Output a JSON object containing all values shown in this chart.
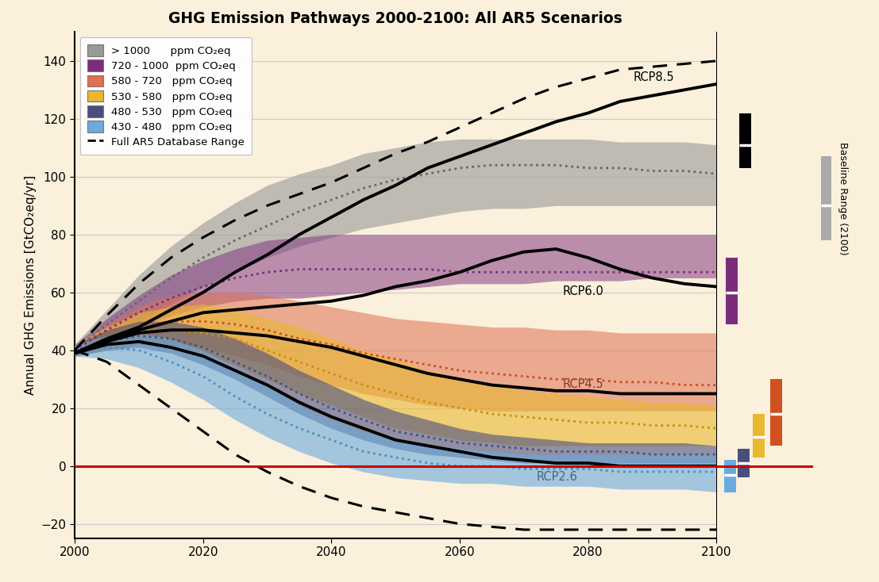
{
  "title": "GHG Emission Pathways 2000-2100: All AR5 Scenarios",
  "ylabel": "Annual GHG Emissions [GtCO₂eq/yr]",
  "bg_color": "#faf0dc",
  "xlim": [
    2000,
    2100
  ],
  "ylim": [
    -25,
    150
  ],
  "yticks": [
    -20,
    0,
    20,
    40,
    60,
    80,
    100,
    120,
    140
  ],
  "xticks": [
    2000,
    2020,
    2040,
    2060,
    2080,
    2100
  ],
  "colors": {
    "gt1000": "#999999",
    "720_1000": "#7b2d7b",
    "580_720": "#e07050",
    "530_580": "#e8b830",
    "480_530": "#4a4e7e",
    "430_480": "#6aabdd",
    "zeroline": "#cc0000"
  },
  "years": [
    2000,
    2005,
    2010,
    2015,
    2020,
    2025,
    2030,
    2035,
    2040,
    2045,
    2050,
    2055,
    2060,
    2065,
    2070,
    2075,
    2080,
    2085,
    2090,
    2095,
    2100
  ],
  "rcp85": [
    39,
    44,
    48,
    54,
    60,
    67,
    73,
    80,
    86,
    92,
    97,
    103,
    107,
    111,
    115,
    119,
    122,
    126,
    128,
    130,
    132
  ],
  "rcp60": [
    39,
    43,
    47,
    50,
    53,
    54,
    55,
    56,
    57,
    59,
    62,
    64,
    67,
    71,
    74,
    75,
    72,
    68,
    65,
    63,
    62
  ],
  "rcp45": [
    39,
    43,
    46,
    47,
    47,
    46,
    45,
    43,
    41,
    38,
    35,
    32,
    30,
    28,
    27,
    26,
    26,
    25,
    25,
    25,
    25
  ],
  "rcp26": [
    39,
    42,
    43,
    41,
    38,
    33,
    28,
    22,
    17,
    13,
    9,
    7,
    5,
    3,
    2,
    1,
    1,
    0,
    0,
    0,
    0
  ],
  "dashed_upper": [
    40,
    52,
    63,
    72,
    79,
    85,
    90,
    94,
    98,
    103,
    108,
    112,
    117,
    122,
    127,
    131,
    134,
    137,
    138,
    139,
    140
  ],
  "dashed_lower": [
    40,
    36,
    28,
    20,
    12,
    4,
    -2,
    -7,
    -11,
    -14,
    -16,
    -18,
    -20,
    -21,
    -22,
    -22,
    -22,
    -22,
    -22,
    -22,
    -22
  ],
  "gt1000_upper": [
    42,
    54,
    66,
    76,
    84,
    91,
    97,
    101,
    104,
    108,
    110,
    112,
    113,
    113,
    113,
    113,
    113,
    112,
    112,
    112,
    111
  ],
  "gt1000_lower": [
    38,
    44,
    50,
    56,
    62,
    67,
    72,
    76,
    79,
    82,
    84,
    86,
    88,
    89,
    89,
    90,
    90,
    90,
    90,
    90,
    90
  ],
  "gt1000_median": [
    40,
    49,
    57,
    65,
    72,
    78,
    83,
    88,
    92,
    96,
    99,
    101,
    103,
    104,
    104,
    104,
    103,
    103,
    102,
    102,
    101
  ],
  "m720_1000_upper": [
    42,
    51,
    59,
    66,
    71,
    75,
    78,
    79,
    80,
    80,
    80,
    80,
    80,
    80,
    80,
    80,
    80,
    80,
    80,
    80,
    80
  ],
  "m720_1000_lower": [
    38,
    43,
    48,
    52,
    55,
    57,
    58,
    58,
    59,
    60,
    61,
    62,
    63,
    63,
    63,
    64,
    64,
    64,
    65,
    65,
    65
  ],
  "m720_1000_median": [
    40,
    47,
    53,
    58,
    62,
    65,
    67,
    68,
    68,
    68,
    68,
    68,
    67,
    67,
    67,
    67,
    67,
    67,
    67,
    67,
    67
  ],
  "m580_720_upper": [
    42,
    49,
    55,
    59,
    60,
    60,
    59,
    57,
    55,
    53,
    51,
    50,
    49,
    48,
    48,
    47,
    47,
    46,
    46,
    46,
    46
  ],
  "m580_720_lower": [
    38,
    40,
    42,
    42,
    41,
    38,
    35,
    31,
    28,
    25,
    23,
    21,
    20,
    19,
    19,
    19,
    19,
    19,
    19,
    19,
    19
  ],
  "m580_720_median": [
    40,
    44,
    48,
    50,
    50,
    49,
    47,
    44,
    42,
    39,
    37,
    35,
    33,
    32,
    31,
    30,
    30,
    29,
    29,
    28,
    28
  ],
  "m530_580_upper": [
    42,
    48,
    53,
    55,
    56,
    54,
    51,
    48,
    44,
    40,
    37,
    33,
    30,
    28,
    26,
    25,
    24,
    23,
    22,
    22,
    21
  ],
  "m530_580_lower": [
    38,
    40,
    42,
    41,
    39,
    35,
    30,
    25,
    21,
    17,
    13,
    11,
    9,
    8,
    7,
    7,
    7,
    7,
    7,
    7,
    7
  ],
  "m530_580_median": [
    40,
    44,
    47,
    47,
    46,
    44,
    40,
    36,
    32,
    28,
    25,
    22,
    20,
    18,
    17,
    16,
    15,
    15,
    14,
    14,
    13
  ],
  "m480_530_upper": [
    42,
    47,
    50,
    50,
    48,
    44,
    39,
    33,
    28,
    23,
    19,
    16,
    13,
    11,
    10,
    9,
    8,
    8,
    8,
    8,
    7
  ],
  "m480_530_lower": [
    38,
    40,
    41,
    39,
    35,
    30,
    24,
    18,
    13,
    9,
    6,
    4,
    3,
    2,
    1,
    1,
    1,
    1,
    1,
    1,
    1
  ],
  "m480_530_median": [
    40,
    43,
    45,
    44,
    41,
    36,
    31,
    25,
    20,
    16,
    12,
    10,
    8,
    7,
    6,
    5,
    5,
    5,
    4,
    4,
    4
  ],
  "m430_480_upper": [
    42,
    45,
    46,
    44,
    40,
    34,
    28,
    21,
    16,
    12,
    9,
    7,
    6,
    5,
    4,
    4,
    4,
    4,
    4,
    4,
    4
  ],
  "m430_480_lower": [
    38,
    37,
    34,
    29,
    23,
    16,
    10,
    5,
    1,
    -2,
    -4,
    -5,
    -6,
    -6,
    -7,
    -7,
    -7,
    -8,
    -8,
    -8,
    -9
  ],
  "m430_480_median": [
    40,
    41,
    40,
    36,
    31,
    24,
    18,
    13,
    9,
    5,
    3,
    1,
    0,
    0,
    -1,
    -1,
    -1,
    -2,
    -2,
    -2,
    -2
  ],
  "side_bars": {
    "black_upper": 122,
    "black_lower": 103,
    "black_median": 111,
    "purple_upper": 72,
    "purple_lower": 49,
    "purple_median": 60,
    "orange_upper": 30,
    "orange_lower": 7,
    "orange_median": 18,
    "yellow_upper": 18,
    "yellow_lower": 3,
    "yellow_median": 10,
    "navy_upper": 6,
    "navy_lower": -4,
    "navy_median": 1,
    "blue_upper": 2,
    "blue_lower": -9,
    "blue_median": -3,
    "gray_upper": 107,
    "gray_lower": 78,
    "gray_median": 90
  }
}
